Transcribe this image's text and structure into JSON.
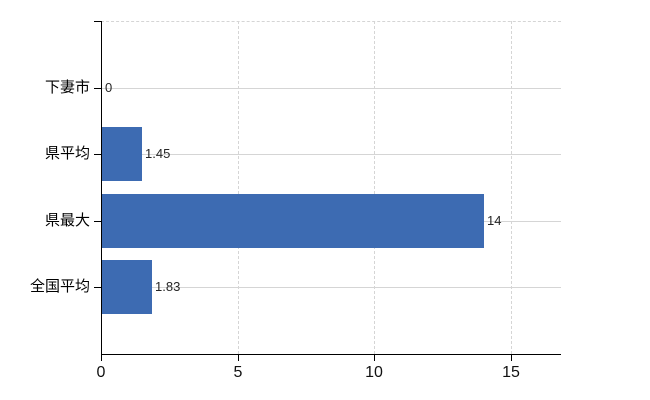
{
  "chart_data": {
    "type": "bar",
    "orientation": "horizontal",
    "title": "",
    "categories": [
      "下妻市",
      "県平均",
      "県最大",
      "全国平均"
    ],
    "values": [
      0,
      1.45,
      14,
      1.83
    ],
    "value_labels": [
      "0",
      "1.45",
      "14",
      "1.83"
    ],
    "x_ticks": [
      0,
      5,
      10,
      15
    ],
    "x_tick_labels": [
      "0",
      "5",
      "10",
      "15"
    ],
    "xlim": [
      0,
      16.84
    ],
    "grid": {
      "vertical_dashed_at": [
        5,
        10,
        15
      ],
      "horizontal_solid": "per-category-center",
      "top_border_dashed": true
    },
    "legend": "none",
    "colors": {
      "bar": "#3d6bb2",
      "gridline": "#d5d5d5",
      "axis": "#000000",
      "value_label": "#262626",
      "tick_label": "#111111",
      "background": "#ffffff"
    }
  }
}
